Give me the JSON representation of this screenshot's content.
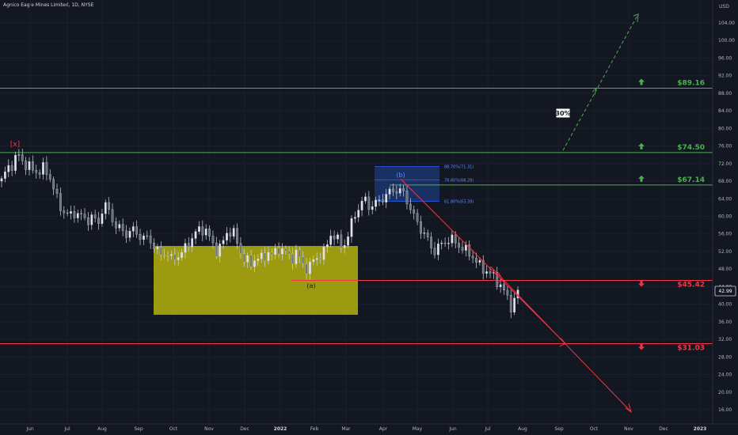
{
  "header": {
    "title": "Agnico Eagle Mines Limited, 1D, NYSE"
  },
  "chart_data": {
    "type": "candlestick",
    "title": "Agnico Eagle Mines Limited, 1D, NYSE",
    "currency": "USD",
    "ylim": [
      14,
      108
    ],
    "y_ticks": [
      "16.00",
      "20.00",
      "24.00",
      "28.00",
      "32.00",
      "36.00",
      "40.00",
      "44.00",
      "48.00",
      "52.00",
      "56.00",
      "60.00",
      "64.00",
      "68.00",
      "72.00",
      "76.00",
      "80.00",
      "84.00",
      "88.00",
      "92.00",
      "96.00",
      "100.00",
      "104.00"
    ],
    "x_ticks": [
      "Jun",
      "Jul",
      "Aug",
      "Sep",
      "Oct",
      "Nov",
      "Dec",
      "2022",
      "Feb",
      "Mar",
      "Apr",
      "May",
      "Jun",
      "Jul",
      "Aug",
      "Sep",
      "Oct",
      "Nov",
      "Dec",
      "2023"
    ],
    "last_price": "42.99",
    "price_path": [
      [
        0,
        68
      ],
      [
        2,
        71
      ],
      [
        4,
        72
      ],
      [
        6,
        74
      ],
      [
        8,
        72
      ],
      [
        10,
        71
      ],
      [
        13,
        70
      ],
      [
        15,
        71
      ],
      [
        17,
        69
      ],
      [
        19,
        65
      ],
      [
        20,
        63
      ],
      [
        22,
        61
      ],
      [
        24,
        60
      ],
      [
        26,
        61
      ],
      [
        28,
        60
      ],
      [
        30,
        59
      ],
      [
        32,
        60
      ],
      [
        34,
        58
      ],
      [
        36,
        63
      ],
      [
        38,
        61
      ],
      [
        40,
        58
      ],
      [
        42,
        57
      ],
      [
        44,
        56
      ],
      [
        46,
        57
      ],
      [
        48,
        56
      ],
      [
        50,
        55
      ],
      [
        52,
        55
      ],
      [
        54,
        53
      ],
      [
        56,
        51
      ],
      [
        58,
        52
      ],
      [
        60,
        50
      ],
      [
        62,
        51
      ],
      [
        64,
        52
      ],
      [
        66,
        54
      ],
      [
        68,
        56
      ],
      [
        70,
        57
      ],
      [
        72,
        57
      ],
      [
        74,
        54
      ],
      [
        76,
        52
      ],
      [
        78,
        54
      ],
      [
        80,
        57
      ],
      [
        82,
        56
      ],
      [
        84,
        52
      ],
      [
        86,
        50
      ],
      [
        88,
        49
      ],
      [
        90,
        51
      ],
      [
        92,
        50
      ],
      [
        94,
        52
      ],
      [
        96,
        51
      ],
      [
        98,
        53
      ],
      [
        100,
        52
      ],
      [
        102,
        50
      ],
      [
        104,
        52
      ],
      [
        106,
        49
      ],
      [
        108,
        48
      ],
      [
        110,
        50
      ],
      [
        112,
        51
      ],
      [
        114,
        52
      ],
      [
        116,
        56
      ],
      [
        118,
        55
      ],
      [
        120,
        53
      ],
      [
        122,
        55
      ],
      [
        124,
        60
      ],
      [
        126,
        62
      ],
      [
        128,
        64
      ],
      [
        130,
        62
      ],
      [
        132,
        63
      ],
      [
        134,
        64
      ],
      [
        136,
        65
      ],
      [
        138,
        66
      ],
      [
        140,
        66
      ],
      [
        142,
        65
      ],
      [
        144,
        62
      ],
      [
        146,
        59
      ],
      [
        148,
        57
      ],
      [
        150,
        55
      ],
      [
        152,
        52
      ],
      [
        154,
        53
      ],
      [
        156,
        54
      ],
      [
        158,
        55
      ],
      [
        160,
        54
      ],
      [
        162,
        53
      ],
      [
        164,
        52
      ],
      [
        166,
        51
      ],
      [
        168,
        49
      ],
      [
        170,
        48
      ],
      [
        172,
        47
      ],
      [
        174,
        46
      ],
      [
        176,
        44
      ],
      [
        178,
        42
      ],
      [
        180,
        39
      ],
      [
        182,
        43
      ]
    ],
    "price_path_x_domain": [
      0,
      182
    ],
    "levels": [
      {
        "label": "$89.16",
        "value": 89.16,
        "color": "#4caf50",
        "direction": "up"
      },
      {
        "label": "$74.50",
        "value": 74.5,
        "color": "#4caf50",
        "direction": "up"
      },
      {
        "label": "$67.14",
        "value": 67.14,
        "color": "#4caf50",
        "direction": "up"
      },
      {
        "label": "$45.42",
        "value": 45.42,
        "color": "#f23645",
        "direction": "down"
      },
      {
        "label": "$31.03",
        "value": 31.03,
        "color": "#f23645",
        "direction": "down"
      }
    ],
    "fib_labels": [
      "88.70%(71.31)",
      "78.60%(68.28)",
      "61.80%(63.39)"
    ],
    "wave_labels": [
      "[x]",
      "(b)",
      "(a)"
    ],
    "annotation": "30%",
    "colors": {
      "background": "#131722",
      "zone": "#a3a110",
      "fib_box": "#1e3a7a",
      "grid": "#1e222d"
    }
  }
}
